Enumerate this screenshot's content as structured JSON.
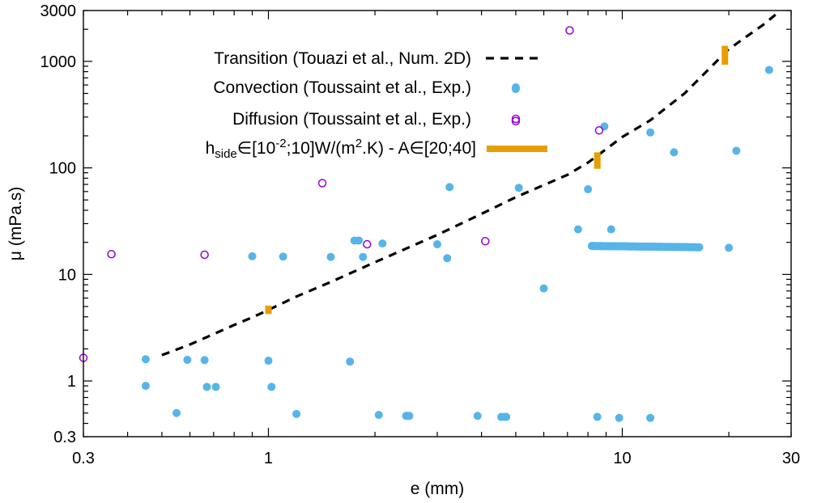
{
  "chart_data": {
    "type": "scatter",
    "xlabel": "e (mm)",
    "ylabel": "μ (mPa.s)",
    "x_scale": "log",
    "y_scale": "log",
    "xlim": [
      0.3,
      30
    ],
    "ylim": [
      0.3,
      3000
    ],
    "x_ticks": [
      {
        "value": 0.3,
        "label": "0.3"
      },
      {
        "value": 1,
        "label": "1"
      },
      {
        "value": 10,
        "label": "10"
      },
      {
        "value": 30,
        "label": "30"
      }
    ],
    "y_ticks": [
      {
        "value": 0.3,
        "label": "0.3"
      },
      {
        "value": 1,
        "label": "1"
      },
      {
        "value": 10,
        "label": "10"
      },
      {
        "value": 100,
        "label": "100"
      },
      {
        "value": 1000,
        "label": "1000"
      },
      {
        "value": 3000,
        "label": "3000"
      }
    ],
    "grid": false,
    "legend_position": "top-left",
    "series": [
      {
        "name": "Transition (Touazi et al., Num. 2D)",
        "kind": "dashed-line",
        "color": "#000000",
        "x": [
          0.5,
          0.6,
          0.7,
          0.8,
          0.9,
          1.0,
          1.2,
          1.5,
          2.0,
          2.5,
          3.0,
          4.0,
          5.0,
          6.0,
          7.0,
          8.0,
          9.0,
          10.0,
          12.0,
          15.0,
          20.0,
          25.0,
          28.0
        ],
        "y": [
          1.75,
          2.2,
          2.75,
          3.35,
          3.95,
          4.65,
          6.2,
          8.5,
          13.0,
          18.0,
          23.5,
          37.0,
          53.0,
          69.0,
          86.0,
          112.0,
          150.0,
          195.0,
          280.0,
          500.0,
          1300.0,
          2200.0,
          3000.0
        ]
      },
      {
        "name": "Convection  (Toussaint et al., Exp.)",
        "kind": "filled-circle",
        "color": "#56b4e9",
        "x": [
          0.45,
          0.45,
          0.55,
          0.59,
          0.66,
          0.67,
          0.71,
          0.9,
          1.0,
          1.02,
          1.1,
          1.2,
          1.5,
          1.7,
          1.75,
          1.8,
          1.85,
          2.05,
          2.1,
          2.45,
          2.5,
          3.0,
          3.2,
          3.25,
          3.9,
          4.55,
          4.65,
          4.7,
          5.0,
          5.1,
          6.0,
          7.5,
          8.0,
          8.5,
          8.9,
          9.3,
          9.8,
          12.0,
          12.0,
          14.0,
          20.0,
          21.0,
          26.0
        ],
        "y": [
          0.9,
          1.6,
          0.5,
          1.58,
          1.57,
          0.88,
          0.88,
          14.8,
          1.55,
          0.88,
          14.7,
          0.49,
          14.6,
          1.52,
          20.8,
          20.8,
          14.6,
          0.48,
          19.5,
          0.47,
          0.47,
          19.2,
          14.2,
          66.0,
          0.47,
          0.46,
          0.46,
          0.46,
          550.0,
          65.0,
          7.4,
          26.5,
          63.0,
          0.46,
          245.0,
          26.5,
          0.45,
          0.45,
          215.0,
          140.0,
          17.8,
          145.0,
          830.0
        ]
      },
      {
        "name": "Diffusion  (Toussaint et al., Exp.)",
        "kind": "open-circle",
        "color": "#9400d3",
        "x": [
          0.3,
          0.36,
          0.66,
          1.42,
          1.9,
          4.1,
          5.0,
          7.1,
          8.6
        ],
        "y": [
          1.65,
          15.5,
          15.3,
          72.0,
          19.2,
          20.5,
          275.0,
          1950.0,
          225.0
        ]
      },
      {
        "name": "h_side∈[10^-2;10]W/(m^2.K) - A∈[20;40]",
        "kind": "vertical-bar",
        "color": "#e69f00",
        "ranges": [
          {
            "x": 1.0,
            "y_min": 4.25,
            "y_max": 5.1
          },
          {
            "x": 8.5,
            "y_min": 98.0,
            "y_max": 140.0
          },
          {
            "x": 19.5,
            "y_min": 930.0,
            "y_max": 1400.0
          }
        ]
      },
      {
        "name": "",
        "kind": "filled-circle-dense",
        "color": "#56b4e9",
        "x_range": [
          8.2,
          16.5
        ],
        "y_range": [
          18.5,
          18.0
        ],
        "count": 90
      }
    ]
  },
  "legend": [
    {
      "label": "Transition (Touazi et al., Num. 2D)"
    },
    {
      "label": "Convection  (Toussaint et al., Exp.)"
    },
    {
      "label": "Diffusion  (Toussaint et al., Exp.)"
    },
    {
      "label_h": "h",
      "label_sub": "side",
      "label_mid": "∈[10",
      "label_sup1": "-2",
      "label_mid2": ";10]W/(m",
      "label_sup2": "2",
      "label_end": ".K) - A∈[20;40]"
    }
  ]
}
